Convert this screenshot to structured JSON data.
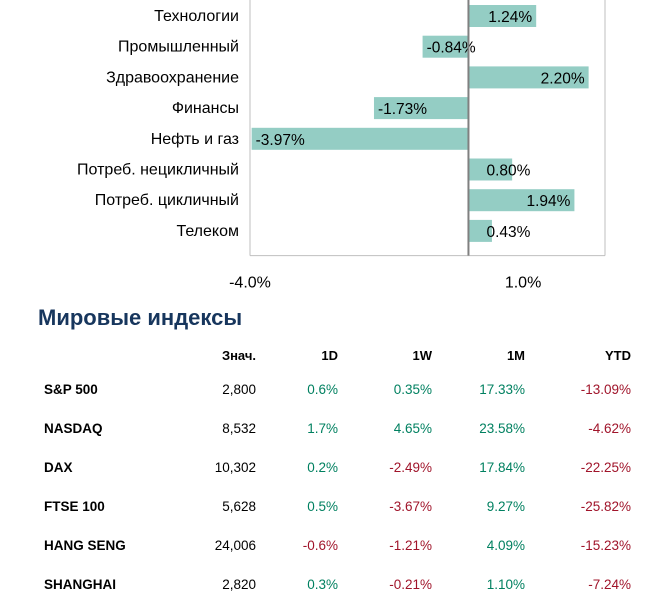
{
  "chart_data": {
    "type": "bar",
    "orientation": "horizontal",
    "categories": [
      "Технологии",
      "Промышленный",
      "Здравоохранение",
      "Финансы",
      "Нефть и газ",
      "Потреб. нецикличный",
      "Потреб. цикличный",
      "Телеком"
    ],
    "values": [
      1.24,
      -0.84,
      2.2,
      -1.73,
      -3.97,
      0.8,
      1.94,
      0.43
    ],
    "value_labels": [
      "1.24%",
      "-0.84%",
      "2.20%",
      "-1.73%",
      "-3.97%",
      "0.80%",
      "1.94%",
      "0.43%"
    ],
    "xlim": [
      -4.0,
      2.5
    ],
    "x_ticks": [
      -4.0,
      1.0
    ],
    "x_tick_labels": [
      "-4.0%",
      "1.0%"
    ],
    "bar_color": "#94cdc4"
  },
  "world_indices": {
    "title": "Мировые индексы",
    "headers": {
      "name": "",
      "value": "Знач.",
      "d1": "1D",
      "w1": "1W",
      "m1": "1M",
      "ytd": "YTD"
    },
    "rows": [
      {
        "name": "S&P 500",
        "value": "2,800",
        "d1": "0.6%",
        "w1": "0.35%",
        "m1": "17.33%",
        "ytd": "-13.09%"
      },
      {
        "name": "NASDAQ",
        "value": "8,532",
        "d1": "1.7%",
        "w1": "4.65%",
        "m1": "23.58%",
        "ytd": "-4.62%"
      },
      {
        "name": "DAX",
        "value": "10,302",
        "d1": "0.2%",
        "w1": "-2.49%",
        "m1": "17.84%",
        "ytd": "-22.25%"
      },
      {
        "name": "FTSE 100",
        "value": "5,628",
        "d1": "0.5%",
        "w1": "-3.67%",
        "m1": "9.27%",
        "ytd": "-25.82%"
      },
      {
        "name": "HANG SENG",
        "value": "24,006",
        "d1": "-0.6%",
        "w1": "-1.21%",
        "m1": "4.09%",
        "ytd": "-15.23%"
      },
      {
        "name": "SHANGHAI",
        "value": "2,820",
        "d1": "0.3%",
        "w1": "-0.21%",
        "m1": "1.10%",
        "ytd": "-7.24%"
      }
    ],
    "colors": {
      "positive": "#008060",
      "negative": "#a0142a",
      "title": "#17365d"
    }
  }
}
